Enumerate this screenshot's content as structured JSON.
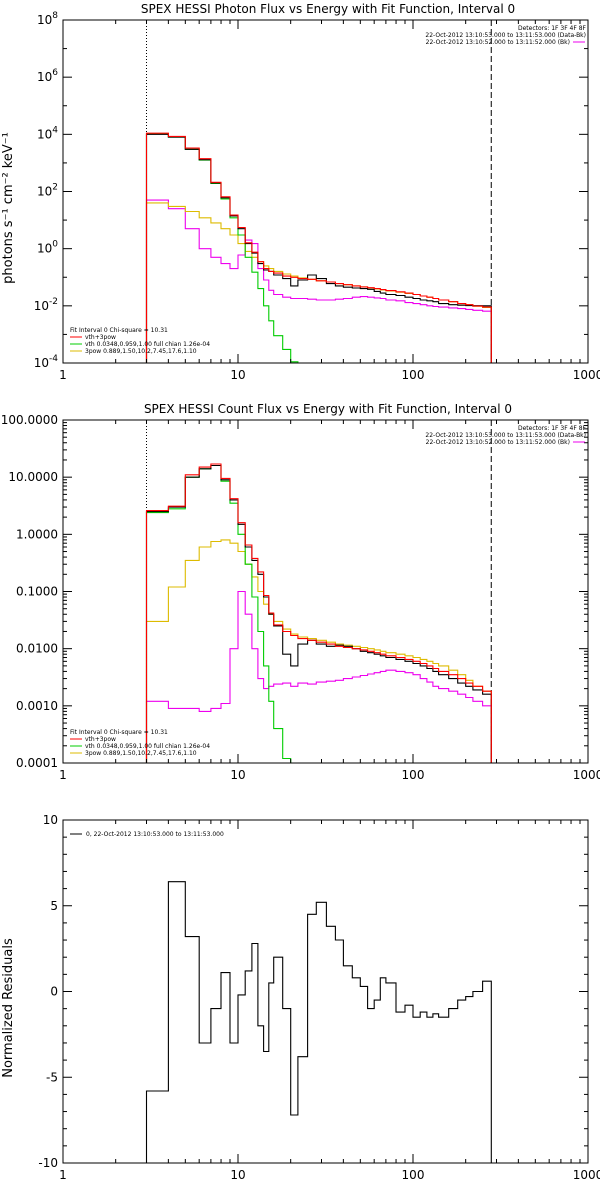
{
  "chart_data": [
    {
      "type": "line",
      "title": "SPEX HESSI Photon Flux vs Energy with Fit Function, Interval 0",
      "xlabel": "",
      "ylabel": "photons s⁻¹ cm⁻² keV⁻¹",
      "xscale": "log",
      "yscale": "log",
      "xlim": [
        1,
        1000
      ],
      "ylim": [
        0.0001,
        100000000
      ],
      "x_ticks": [
        "1",
        "10",
        "100",
        "1000"
      ],
      "y_ticks": [
        "10^-4",
        "10^-2",
        "10^0",
        "10^2",
        "10^4",
        "10^6",
        "10^8"
      ],
      "vlines": [
        {
          "x": 3,
          "style": "dotted"
        },
        {
          "x": 280,
          "style": "dashed"
        }
      ],
      "detectors": [
        "Detectors: 1F 3F 4F 8F",
        "22-Oct-2012 13:10:53.000 to 13:11:53.000 (Data-Bk)",
        "22-Oct-2012 13:10:52.000 to 13:11:52.000 (Bk)"
      ],
      "legend_title": "Fit Interval 0   Chi-square = 10.31",
      "legend": [
        {
          "label": "vth+3pow",
          "color": "#ff0000"
        },
        {
          "label": "vth 0.0348,0.959,1.00  full chian 1.26e-04",
          "color": "#00cc00"
        },
        {
          "label": "3pow 0.889,1.50,10.2,7.45,17.6,1.10",
          "color": "#ddbb00"
        }
      ],
      "edges": [
        3,
        4,
        5,
        6,
        7,
        8,
        9,
        10,
        11,
        12,
        13,
        14,
        15,
        16,
        18,
        20,
        22,
        25,
        28,
        32,
        36,
        40,
        45,
        50,
        55,
        60,
        65,
        70,
        80,
        90,
        100,
        110,
        120,
        130,
        140,
        160,
        180,
        200,
        220,
        250,
        280
      ],
      "series": [
        {
          "role": "data",
          "color": "#000000",
          "values": [
            10000,
            8000,
            3000,
            1300,
            200,
            60,
            14,
            5,
            1.5,
            0.7,
            0.3,
            0.18,
            0.16,
            0.12,
            0.09,
            0.05,
            0.08,
            0.12,
            0.09,
            0.06,
            0.05,
            0.045,
            0.042,
            0.04,
            0.038,
            0.032,
            0.028,
            0.025,
            0.023,
            0.02,
            0.018,
            0.016,
            0.015,
            0.014,
            0.012,
            0.011,
            0.0105,
            0.0102,
            0.0101,
            0.01
          ]
        },
        {
          "role": "total",
          "color": "#ff0000",
          "values": [
            11000,
            8500,
            3300,
            1400,
            210,
            65,
            15,
            5.5,
            1.6,
            0.75,
            0.35,
            0.2,
            0.16,
            0.14,
            0.11,
            0.1,
            0.09,
            0.085,
            0.075,
            0.068,
            0.06,
            0.055,
            0.05,
            0.046,
            0.043,
            0.04,
            0.037,
            0.034,
            0.031,
            0.028,
            0.025,
            0.022,
            0.02,
            0.018,
            0.016,
            0.014,
            0.012,
            0.011,
            0.0098,
            0.009
          ]
        },
        {
          "role": "vth",
          "color": "#00cc00",
          "values": [
            10500,
            8000,
            3000,
            1250,
            190,
            55,
            12,
            3,
            0.5,
            0.15,
            0.04,
            0.01,
            0.003,
            0.0009,
            0.0003,
            0.00011,
            3e-05
          ]
        },
        {
          "role": "3pow",
          "color": "#ddbb00",
          "values": [
            40,
            30,
            20,
            12,
            8,
            5,
            3,
            1.5,
            0.8,
            0.5,
            0.35,
            0.25,
            0.2,
            0.16,
            0.13,
            0.11,
            0.095,
            0.085,
            0.075,
            0.068,
            0.06,
            0.055,
            0.05,
            0.046,
            0.042,
            0.039,
            0.036,
            0.033,
            0.03,
            0.027,
            0.025,
            0.022,
            0.02,
            0.018,
            0.016,
            0.014,
            0.012,
            0.011,
            0.0097,
            0.0088
          ]
        },
        {
          "role": "background",
          "color": "#ee00ee",
          "values": [
            50,
            25,
            5,
            1,
            0.5,
            0.3,
            0.2,
            0.6,
            2,
            1.5,
            0.2,
            0.08,
            0.035,
            0.025,
            0.02,
            0.018,
            0.018,
            0.017,
            0.016,
            0.016,
            0.017,
            0.018,
            0.02,
            0.021,
            0.02,
            0.019,
            0.018,
            0.016,
            0.015,
            0.013,
            0.012,
            0.011,
            0.01,
            0.0095,
            0.009,
            0.0085,
            0.008,
            0.0075,
            0.007,
            0.0065
          ]
        }
      ]
    },
    {
      "type": "line",
      "title": "SPEX HESSI Count Flux vs Energy with Fit Function, Interval 0",
      "xlabel": "",
      "ylabel": "",
      "xscale": "log",
      "yscale": "log",
      "xlim": [
        1,
        1000
      ],
      "ylim": [
        0.0001,
        100
      ],
      "x_ticks": [
        "1",
        "10",
        "100",
        "1000"
      ],
      "y_ticks": [
        "0.0001",
        "0.0010",
        "0.0100",
        "0.1000",
        "1.0000",
        "10.0000",
        "100.0000"
      ],
      "vlines": [
        {
          "x": 3,
          "style": "dotted"
        },
        {
          "x": 280,
          "style": "dashed"
        }
      ],
      "detectors": [
        "Detectors: 1F 3F 4F 8F",
        "22-Oct-2012 13:10:53.000 to 13:11:53.000 (Data-Bk)",
        "22-Oct-2012 13:10:52.000 to 13:11:52.000 (Bk)"
      ],
      "legend_title": "Fit Interval 0   Chi-square = 10.31",
      "legend": [
        {
          "label": "vth+3pow",
          "color": "#ff0000"
        },
        {
          "label": "vth 0.0348,0.959,1.00  full chian 1.26e-04",
          "color": "#00cc00"
        },
        {
          "label": "3pow 0.889,1.50,10.2,7.45,17.6,1.10",
          "color": "#ddbb00"
        }
      ],
      "edges": [
        3,
        4,
        5,
        6,
        7,
        8,
        9,
        10,
        11,
        12,
        13,
        14,
        15,
        16,
        18,
        20,
        22,
        25,
        28,
        32,
        36,
        40,
        45,
        50,
        55,
        60,
        65,
        70,
        80,
        90,
        100,
        110,
        120,
        130,
        140,
        160,
        180,
        200,
        220,
        250,
        280
      ],
      "series": [
        {
          "role": "data",
          "color": "#000000",
          "values": [
            2.5,
            3,
            10,
            14,
            16,
            9,
            4,
            1.5,
            0.6,
            0.35,
            0.2,
            0.08,
            0.04,
            0.025,
            0.008,
            0.005,
            0.012,
            0.014,
            0.012,
            0.011,
            0.0115,
            0.011,
            0.01,
            0.009,
            0.0085,
            0.008,
            0.0075,
            0.007,
            0.0065,
            0.006,
            0.0055,
            0.005,
            0.0045,
            0.004,
            0.0035,
            0.003,
            0.0025,
            0.0022,
            0.0019,
            0.0016
          ]
        },
        {
          "role": "total",
          "color": "#ff0000",
          "values": [
            2.6,
            3.1,
            11,
            15,
            17,
            9.5,
            4.2,
            1.6,
            0.65,
            0.38,
            0.22,
            0.085,
            0.042,
            0.026,
            0.02,
            0.017,
            0.015,
            0.014,
            0.013,
            0.012,
            0.011,
            0.0105,
            0.01,
            0.0095,
            0.009,
            0.0085,
            0.008,
            0.0075,
            0.007,
            0.0065,
            0.006,
            0.0055,
            0.005,
            0.0045,
            0.004,
            0.0035,
            0.003,
            0.0025,
            0.0022,
            0.0018
          ]
        },
        {
          "role": "vth",
          "color": "#00cc00",
          "values": [
            2.4,
            2.8,
            10,
            14,
            16,
            8.5,
            3.5,
            1.0,
            0.3,
            0.08,
            0.02,
            0.005,
            0.0012,
            0.0004,
            0.00012,
            3e-05
          ]
        },
        {
          "role": "3pow",
          "color": "#ddbb00",
          "values": [
            0.03,
            0.12,
            0.35,
            0.6,
            0.75,
            0.8,
            0.7,
            0.5,
            0.3,
            0.18,
            0.1,
            0.06,
            0.04,
            0.03,
            0.022,
            0.018,
            0.016,
            0.015,
            0.014,
            0.013,
            0.012,
            0.0115,
            0.011,
            0.0105,
            0.01,
            0.0095,
            0.009,
            0.0085,
            0.008,
            0.0075,
            0.007,
            0.0065,
            0.006,
            0.0055,
            0.005,
            0.0042,
            0.0035,
            0.0028,
            0.0022,
            0.0018
          ]
        },
        {
          "role": "background",
          "color": "#ee00ee",
          "values": [
            0.0012,
            0.0009,
            0.0009,
            0.0008,
            0.0009,
            0.0011,
            0.01,
            0.1,
            0.04,
            0.01,
            0.003,
            0.002,
            0.0022,
            0.0024,
            0.0025,
            0.0022,
            0.0025,
            0.0024,
            0.0026,
            0.0027,
            0.0028,
            0.003,
            0.0032,
            0.0034,
            0.0036,
            0.0038,
            0.004,
            0.0042,
            0.004,
            0.0038,
            0.0035,
            0.003,
            0.0026,
            0.0022,
            0.002,
            0.0018,
            0.0016,
            0.0014,
            0.0012,
            0.001
          ]
        }
      ]
    },
    {
      "type": "line",
      "title": "",
      "xlabel": "",
      "ylabel": "Normalized Residuals",
      "xscale": "log",
      "yscale": "linear",
      "xlim": [
        1,
        1000
      ],
      "ylim": [
        -10,
        10
      ],
      "x_ticks": [
        "1",
        "10",
        "100",
        "1000"
      ],
      "y_ticks": [
        "-10",
        "-5",
        "0",
        "5",
        "10"
      ],
      "legend_title": "",
      "legend": [
        {
          "label": "0, 22-Oct-2012 13:10:53.000 to 13:11:53.000",
          "color": "#000000"
        }
      ],
      "edges": [
        3,
        4,
        5,
        6,
        7,
        8,
        9,
        10,
        11,
        12,
        13,
        14,
        15,
        16,
        18,
        20,
        22,
        25,
        28,
        32,
        36,
        40,
        45,
        50,
        55,
        60,
        65,
        70,
        80,
        90,
        100,
        110,
        120,
        130,
        140,
        160,
        180,
        200,
        220,
        250,
        280
      ],
      "series": [
        {
          "role": "residuals",
          "color": "#000000",
          "values": [
            -5.8,
            6.4,
            3.2,
            -3,
            -1,
            1.1,
            -3,
            -0.2,
            1.2,
            2.8,
            -2,
            -3.5,
            0.5,
            2,
            -1,
            -7.2,
            -3.8,
            4.5,
            5.2,
            3.8,
            3,
            1.5,
            0.8,
            0.3,
            -1,
            -0.5,
            0.8,
            0.5,
            -1.2,
            -0.8,
            -1.5,
            -1.2,
            -1.5,
            -1.3,
            -1.5,
            -1,
            -0.5,
            -0.3,
            0,
            0.6
          ]
        }
      ]
    }
  ]
}
